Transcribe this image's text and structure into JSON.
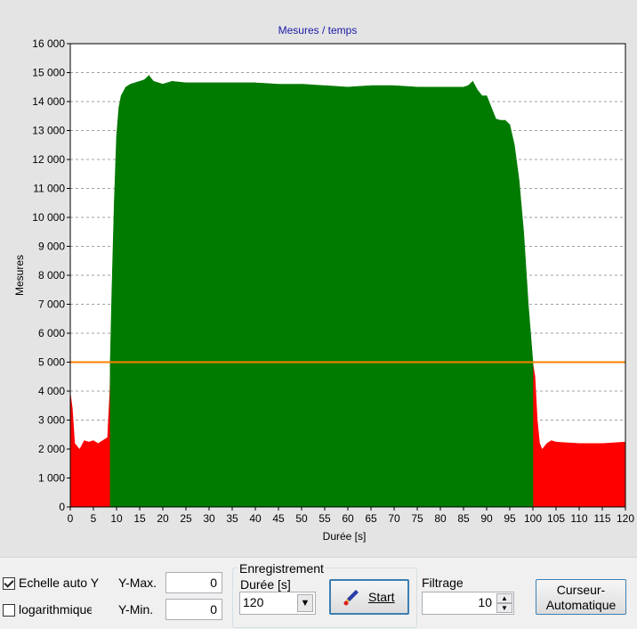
{
  "chart_data": {
    "type": "area",
    "title": "Mesures / temps",
    "xlabel": "Durée [s]",
    "ylabel": "Mesures",
    "xlim": [
      0,
      120
    ],
    "ylim": [
      0,
      16000
    ],
    "x_ticks": [
      "0",
      "5",
      "10",
      "15",
      "20",
      "25",
      "30",
      "35",
      "40",
      "45",
      "50",
      "55",
      "60",
      "65",
      "70",
      "75",
      "80",
      "85",
      "90",
      "95",
      "100",
      "105",
      "110",
      "115",
      "120"
    ],
    "y_ticks": [
      "0",
      "1 000",
      "2 000",
      "3 000",
      "4 000",
      "5 000",
      "6 000",
      "7 000",
      "8 000",
      "9 000",
      "10 000",
      "11 000",
      "12 000",
      "13 000",
      "14 000",
      "15 000",
      "16 000"
    ],
    "grid": "horizontal dashed",
    "threshold": 5000,
    "colors": {
      "above": "#007b00",
      "below": "#ff0000",
      "threshold": "#ff8000",
      "title": "#1a1aa6",
      "plot_bg": "#ffffff"
    },
    "series": [
      {
        "x": [
          0,
          0.5,
          1,
          2,
          3,
          4,
          5,
          6,
          7,
          8,
          8.5,
          9,
          9.5,
          10,
          10.5,
          11,
          12,
          13,
          14,
          15,
          16,
          17,
          18,
          19,
          20,
          22,
          25,
          30,
          35,
          40,
          45,
          50,
          55,
          60,
          65,
          70,
          75,
          80,
          85,
          86,
          87,
          88,
          89,
          90,
          91,
          92,
          93,
          94,
          95,
          96,
          97,
          98,
          99,
          100,
          100.5,
          101,
          101.5,
          102,
          103,
          104,
          105,
          110,
          115,
          120
        ],
        "values": [
          4000,
          3400,
          2200,
          2000,
          2300,
          2250,
          2300,
          2200,
          2300,
          2400,
          4000,
          7500,
          10500,
          12800,
          13800,
          14200,
          14500,
          14600,
          14650,
          14700,
          14750,
          14900,
          14700,
          14650,
          14600,
          14700,
          14650,
          14650,
          14650,
          14650,
          14600,
          14600,
          14550,
          14500,
          14550,
          14550,
          14500,
          14500,
          14500,
          14550,
          14700,
          14400,
          14200,
          14200,
          13800,
          13400,
          13350,
          13350,
          13200,
          12500,
          11300,
          9500,
          7000,
          5000,
          4500,
          3000,
          2200,
          2000,
          2200,
          2300,
          2250,
          2200,
          2200,
          2250
        ]
      }
    ]
  },
  "controls": {
    "auto_scale_label": "Echelle auto Y",
    "auto_scale_checked": true,
    "log_label": "logarithmique",
    "log_checked": false,
    "ymax_label": "Y-Max.",
    "ymax_value": "0",
    "ymin_label": "Y-Min.",
    "ymin_value": "0",
    "recording_title": "Enregistrement",
    "duration_label": "Durée [s]",
    "duration_value": "120",
    "start_label": "Start",
    "filter_label": "Filtrage",
    "filter_value": "10",
    "cursor_button_label": "Curseur-\nAutomatique"
  }
}
